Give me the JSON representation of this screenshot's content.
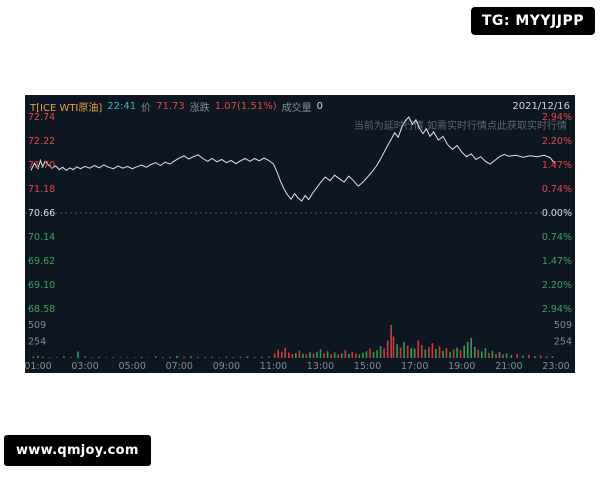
{
  "badges": {
    "tg": "TG: MYYJJPP",
    "site": "www.qmjoy.com"
  },
  "header": {
    "symbol": "T[ICE WTI原油]",
    "time": "22:41",
    "price_label": "价",
    "price": "71.73",
    "change_label": "涨跌",
    "change": "1.07(1.51%)",
    "volume_label": "成交量",
    "volume": "0",
    "date": "2021/12/16"
  },
  "watermark": "当前为延时行情,如需实时行情点此获取实时行情",
  "palette": {
    "panel_bg": "#0e1621",
    "badge_bg": "#000000",
    "badge_text": "#ffffff",
    "orange": "#e2a23c",
    "cyan": "#35b8b8",
    "red_text": "#e14747",
    "green_text": "#3aa35c",
    "neutral_text": "#d4dbe2",
    "gray_text": "#7f8b96",
    "line": "#dfe4ea",
    "red_bar": "#cf3a3a",
    "green_bar": "#2f9e55",
    "grid": "#4a5561"
  },
  "chart_data": {
    "type": "line",
    "title": "ICE WTI crude oil intraday (delayed quote)",
    "prev_close": 70.66,
    "last_price": 71.73,
    "change": "+1.07 (+1.51%)",
    "price_axis": {
      "min": 68.58,
      "max": 72.74,
      "labels": [
        "72.74",
        "72.22",
        "71.70",
        "71.18",
        "70.66",
        "70.14",
        "69.62",
        "69.10",
        "68.58"
      ],
      "colors": [
        "red",
        "red",
        "red",
        "red",
        "neutral",
        "green",
        "green",
        "green",
        "green"
      ]
    },
    "pct_axis": {
      "labels": [
        "2.94%",
        "2.20%",
        "1.47%",
        "0.74%",
        "0.00%",
        "0.74%",
        "1.47%",
        "2.20%",
        "2.94%"
      ],
      "colors": [
        "red",
        "red",
        "red",
        "red",
        "neutral",
        "green",
        "green",
        "green",
        "green"
      ]
    },
    "volume_axis": {
      "labels": [
        "509",
        "254"
      ],
      "values": [
        509,
        254
      ],
      "max": 560
    },
    "x_axis": {
      "labels": [
        "01:00",
        "03:00",
        "05:00",
        "07:00",
        "09:00",
        "11:00",
        "13:00",
        "15:00",
        "17:00",
        "19:00",
        "21:00",
        "23:00"
      ],
      "hours": [
        1,
        3,
        5,
        7,
        9,
        11,
        13,
        15,
        17,
        19,
        21,
        23
      ],
      "domain": [
        0.5,
        23.2
      ]
    },
    "price_series": {
      "x": [
        0.7,
        0.85,
        1.0,
        1.1,
        1.2,
        1.3,
        1.45,
        1.6,
        1.75,
        1.9,
        2.05,
        2.2,
        2.35,
        2.5,
        2.65,
        2.8,
        3.0,
        3.2,
        3.4,
        3.6,
        3.8,
        4.0,
        4.2,
        4.4,
        4.6,
        4.8,
        5.0,
        5.2,
        5.4,
        5.6,
        5.8,
        6.0,
        6.2,
        6.4,
        6.6,
        6.8,
        7.0,
        7.2,
        7.4,
        7.6,
        7.8,
        8.0,
        8.2,
        8.4,
        8.6,
        8.8,
        9.0,
        9.2,
        9.4,
        9.6,
        9.8,
        10.0,
        10.2,
        10.4,
        10.6,
        10.8,
        11.0,
        11.15,
        11.3,
        11.45,
        11.6,
        11.75,
        11.9,
        12.05,
        12.2,
        12.35,
        12.5,
        12.65,
        12.8,
        13.0,
        13.2,
        13.4,
        13.6,
        13.8,
        14.0,
        14.2,
        14.4,
        14.6,
        14.8,
        15.0,
        15.2,
        15.4,
        15.6,
        15.8,
        16.0,
        16.15,
        16.3,
        16.45,
        16.6,
        16.75,
        16.9,
        17.05,
        17.2,
        17.35,
        17.5,
        17.65,
        17.8,
        18.0,
        18.2,
        18.4,
        18.6,
        18.8,
        19.0,
        19.2,
        19.4,
        19.6,
        19.8,
        20.0,
        20.2,
        20.4,
        20.6,
        20.8,
        21.0,
        21.3,
        21.6,
        21.9,
        22.2,
        22.5,
        22.75,
        22.95
      ],
      "y": [
        71.58,
        71.74,
        71.62,
        71.8,
        71.66,
        71.78,
        71.7,
        71.63,
        71.68,
        71.6,
        71.65,
        71.58,
        71.64,
        71.6,
        71.66,
        71.62,
        71.67,
        71.63,
        71.69,
        71.64,
        71.7,
        71.65,
        71.62,
        71.68,
        71.63,
        71.67,
        71.62,
        71.66,
        71.7,
        71.65,
        71.71,
        71.75,
        71.69,
        71.76,
        71.72,
        71.79,
        71.85,
        71.9,
        71.83,
        71.88,
        71.92,
        71.84,
        71.78,
        71.84,
        71.77,
        71.82,
        71.75,
        71.8,
        71.73,
        71.79,
        71.84,
        71.78,
        71.84,
        71.79,
        71.85,
        71.8,
        71.72,
        71.55,
        71.35,
        71.18,
        71.05,
        70.96,
        71.08,
        70.98,
        70.92,
        71.04,
        70.95,
        71.08,
        71.18,
        71.32,
        71.44,
        71.36,
        71.48,
        71.4,
        71.33,
        71.46,
        71.36,
        71.24,
        71.33,
        71.44,
        71.56,
        71.7,
        71.88,
        72.08,
        72.26,
        72.4,
        72.3,
        72.52,
        72.66,
        72.74,
        72.58,
        72.68,
        72.5,
        72.38,
        72.48,
        72.32,
        72.42,
        72.24,
        72.32,
        72.14,
        72.04,
        72.12,
        71.98,
        71.88,
        71.94,
        71.82,
        71.88,
        71.78,
        71.72,
        71.8,
        71.88,
        71.93,
        71.89,
        71.91,
        71.87,
        71.9,
        71.88,
        71.91,
        71.86,
        71.73
      ]
    },
    "volume_bars": [
      [
        0.8,
        20,
        "g"
      ],
      [
        1.0,
        35,
        "r"
      ],
      [
        1.2,
        18,
        "g"
      ],
      [
        1.5,
        12,
        "r"
      ],
      [
        1.8,
        10,
        "g"
      ],
      [
        2.1,
        28,
        "g"
      ],
      [
        2.4,
        16,
        "r"
      ],
      [
        2.7,
        100,
        "g"
      ],
      [
        3.0,
        24,
        "g"
      ],
      [
        3.3,
        12,
        "r"
      ],
      [
        3.6,
        15,
        "g"
      ],
      [
        3.9,
        9,
        "r"
      ],
      [
        4.2,
        13,
        "g"
      ],
      [
        4.5,
        8,
        "r"
      ],
      [
        4.8,
        11,
        "g"
      ],
      [
        5.1,
        9,
        "r"
      ],
      [
        5.4,
        17,
        "g"
      ],
      [
        5.7,
        8,
        "r"
      ],
      [
        6.0,
        24,
        "g"
      ],
      [
        6.3,
        13,
        "r"
      ],
      [
        6.6,
        19,
        "g"
      ],
      [
        6.9,
        32,
        "g"
      ],
      [
        7.2,
        20,
        "r"
      ],
      [
        7.5,
        26,
        "g"
      ],
      [
        7.8,
        15,
        "r"
      ],
      [
        8.1,
        12,
        "g"
      ],
      [
        8.4,
        18,
        "r"
      ],
      [
        8.7,
        10,
        "g"
      ],
      [
        9.0,
        22,
        "r"
      ],
      [
        9.3,
        13,
        "g"
      ],
      [
        9.6,
        17,
        "r"
      ],
      [
        9.9,
        24,
        "g"
      ],
      [
        10.2,
        14,
        "r"
      ],
      [
        10.5,
        19,
        "g"
      ],
      [
        10.8,
        26,
        "r"
      ],
      [
        11.05,
        70,
        "r"
      ],
      [
        11.2,
        130,
        "r"
      ],
      [
        11.35,
        95,
        "r"
      ],
      [
        11.5,
        160,
        "r"
      ],
      [
        11.65,
        85,
        "r"
      ],
      [
        11.8,
        60,
        "r"
      ],
      [
        11.95,
        75,
        "g"
      ],
      [
        12.1,
        115,
        "r"
      ],
      [
        12.25,
        65,
        "g"
      ],
      [
        12.4,
        55,
        "r"
      ],
      [
        12.55,
        90,
        "g"
      ],
      [
        12.7,
        70,
        "r"
      ],
      [
        12.85,
        95,
        "g"
      ],
      [
        13.0,
        135,
        "g"
      ],
      [
        13.15,
        75,
        "r"
      ],
      [
        13.3,
        105,
        "g"
      ],
      [
        13.45,
        60,
        "r"
      ],
      [
        13.6,
        85,
        "g"
      ],
      [
        13.75,
        55,
        "r"
      ],
      [
        13.9,
        70,
        "g"
      ],
      [
        14.05,
        125,
        "r"
      ],
      [
        14.2,
        60,
        "g"
      ],
      [
        14.35,
        95,
        "r"
      ],
      [
        14.5,
        70,
        "r"
      ],
      [
        14.65,
        55,
        "g"
      ],
      [
        14.8,
        80,
        "g"
      ],
      [
        14.95,
        105,
        "g"
      ],
      [
        15.1,
        145,
        "r"
      ],
      [
        15.25,
        90,
        "g"
      ],
      [
        15.4,
        120,
        "g"
      ],
      [
        15.55,
        185,
        "g"
      ],
      [
        15.7,
        150,
        "r"
      ],
      [
        15.85,
        270,
        "r"
      ],
      [
        16.0,
        509,
        "r"
      ],
      [
        16.1,
        330,
        "r"
      ],
      [
        16.25,
        210,
        "g"
      ],
      [
        16.4,
        160,
        "r"
      ],
      [
        16.55,
        250,
        "g"
      ],
      [
        16.7,
        190,
        "r"
      ],
      [
        16.85,
        150,
        "g"
      ],
      [
        17.0,
        145,
        "g"
      ],
      [
        17.15,
        270,
        "r"
      ],
      [
        17.3,
        200,
        "r"
      ],
      [
        17.45,
        130,
        "g"
      ],
      [
        17.6,
        170,
        "r"
      ],
      [
        17.75,
        230,
        "r"
      ],
      [
        17.9,
        140,
        "g"
      ],
      [
        18.05,
        180,
        "r"
      ],
      [
        18.2,
        110,
        "g"
      ],
      [
        18.35,
        150,
        "r"
      ],
      [
        18.5,
        95,
        "g"
      ],
      [
        18.65,
        135,
        "r"
      ],
      [
        18.8,
        160,
        "g"
      ],
      [
        18.95,
        120,
        "r"
      ],
      [
        19.1,
        190,
        "g"
      ],
      [
        19.25,
        250,
        "g"
      ],
      [
        19.4,
        310,
        "g"
      ],
      [
        19.55,
        170,
        "g"
      ],
      [
        19.7,
        130,
        "r"
      ],
      [
        19.85,
        100,
        "g"
      ],
      [
        20.0,
        150,
        "g"
      ],
      [
        20.15,
        80,
        "r"
      ],
      [
        20.3,
        110,
        "g"
      ],
      [
        20.45,
        65,
        "r"
      ],
      [
        20.6,
        95,
        "g"
      ],
      [
        20.75,
        55,
        "r"
      ],
      [
        20.9,
        70,
        "g"
      ],
      [
        21.1,
        45,
        "g"
      ],
      [
        21.35,
        60,
        "r"
      ],
      [
        21.6,
        35,
        "g"
      ],
      [
        21.85,
        50,
        "r"
      ],
      [
        22.1,
        28,
        "g"
      ],
      [
        22.35,
        40,
        "r"
      ],
      [
        22.6,
        22,
        "g"
      ],
      [
        22.85,
        30,
        "r"
      ]
    ]
  }
}
